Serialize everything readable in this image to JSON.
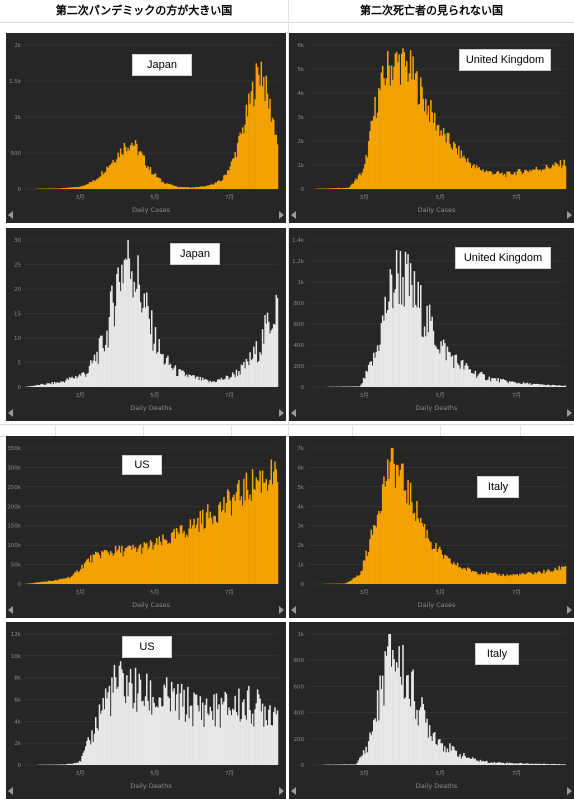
{
  "headers": {
    "left": "第二次パンデミックの方が大きい国",
    "right": "第二次死亡者の見られない国"
  },
  "colors": {
    "panel_bg": "#262626",
    "cases_fill": "#f5a300",
    "deaths_fill": "#e8e8e8",
    "axis_text": "#8a8a8a",
    "gridline": "#3a3a3a"
  },
  "panels": [
    {
      "country": "Japan",
      "metric": "Daily Cases",
      "yticks": [
        "0",
        "500",
        "1k",
        "1.5k",
        "2k"
      ],
      "xticks": [
        "3月",
        "5月",
        "7月"
      ]
    },
    {
      "country": "United Kingdom",
      "metric": "Daily Cases",
      "yticks": [
        "0",
        "1k",
        "2k",
        "3k",
        "4k",
        "5k",
        "6k"
      ],
      "xticks": [
        "3月",
        "5月",
        "7月"
      ]
    },
    {
      "country": "Japan",
      "metric": "Daily Deaths",
      "yticks": [
        "0",
        "5",
        "10",
        "15",
        "20",
        "25",
        "30"
      ],
      "xticks": [
        "3月",
        "5月",
        "7月"
      ]
    },
    {
      "country": "United Kingdom",
      "metric": "Daily Deaths",
      "yticks": [
        "0",
        "200",
        "400",
        "600",
        "800",
        "1k",
        "1.2k",
        "1.4k"
      ],
      "xticks": [
        "3月",
        "5月",
        "7月"
      ]
    },
    {
      "country": "US",
      "metric": "Daily Cases",
      "yticks": [
        "0",
        "50k",
        "100k",
        "150k",
        "200k",
        "250k",
        "300k",
        "350k"
      ],
      "xticks": [
        "3月",
        "5月",
        "7月"
      ]
    },
    {
      "country": "Italy",
      "metric": "Daily Cases",
      "yticks": [
        "0",
        "1k",
        "2k",
        "3k",
        "4k",
        "5k",
        "6k",
        "7k"
      ],
      "xticks": [
        "3月",
        "5月",
        "7月"
      ]
    },
    {
      "country": "US",
      "metric": "Daily Deaths",
      "yticks": [
        "0",
        "2k",
        "4k",
        "6k",
        "8k",
        "10k",
        "12k"
      ],
      "xticks": [
        "3月",
        "5月",
        "7月"
      ]
    },
    {
      "country": "Italy",
      "metric": "Daily Deaths",
      "yticks": [
        "0",
        "200",
        "400",
        "600",
        "800",
        "1k"
      ],
      "xticks": [
        "3月",
        "5月",
        "7月"
      ]
    }
  ],
  "chart_data": [
    {
      "type": "bar",
      "title": "Japan",
      "xlabel": "Daily Cases",
      "ylabel": "",
      "ylim": [
        0,
        2000
      ],
      "x_range_months": [
        1.5,
        8.3
      ],
      "grid": true,
      "shape": [
        [
          1.5,
          0
        ],
        [
          2.5,
          10
        ],
        [
          3.0,
          30
        ],
        [
          3.4,
          120
        ],
        [
          3.8,
          350
        ],
        [
          4.2,
          600
        ],
        [
          4.4,
          650
        ],
        [
          4.6,
          500
        ],
        [
          4.9,
          250
        ],
        [
          5.2,
          100
        ],
        [
          5.6,
          30
        ],
        [
          6.0,
          20
        ],
        [
          6.4,
          40
        ],
        [
          6.8,
          120
        ],
        [
          7.1,
          400
        ],
        [
          7.4,
          900
        ],
        [
          7.7,
          1500
        ],
        [
          7.85,
          1700
        ],
        [
          8.0,
          1300
        ],
        [
          8.2,
          900
        ],
        [
          8.3,
          600
        ]
      ]
    },
    {
      "type": "bar",
      "title": "United Kingdom",
      "xlabel": "Daily Cases",
      "ylabel": "",
      "ylim": [
        0,
        6000
      ],
      "x_range_months": [
        1.5,
        8.3
      ],
      "grid": true,
      "shape": [
        [
          1.5,
          0
        ],
        [
          2.6,
          50
        ],
        [
          3.0,
          800
        ],
        [
          3.3,
          3500
        ],
        [
          3.6,
          5000
        ],
        [
          3.9,
          5300
        ],
        [
          4.2,
          5000
        ],
        [
          4.5,
          4000
        ],
        [
          4.8,
          3000
        ],
        [
          5.1,
          2200
        ],
        [
          5.5,
          1500
        ],
        [
          5.9,
          900
        ],
        [
          6.3,
          700
        ],
        [
          6.7,
          600
        ],
        [
          7.0,
          700
        ],
        [
          7.4,
          800
        ],
        [
          7.8,
          900
        ],
        [
          8.1,
          1000
        ],
        [
          8.3,
          1100
        ]
      ]
    },
    {
      "type": "bar",
      "title": "Japan",
      "xlabel": "Daily Deaths",
      "ylabel": "",
      "ylim": [
        0,
        30
      ],
      "x_range_months": [
        1.5,
        8.3
      ],
      "grid": true,
      "shape": [
        [
          1.5,
          0
        ],
        [
          2.5,
          1
        ],
        [
          3.2,
          3
        ],
        [
          3.7,
          10
        ],
        [
          4.0,
          22
        ],
        [
          4.3,
          28
        ],
        [
          4.6,
          20
        ],
        [
          4.9,
          12
        ],
        [
          5.2,
          6
        ],
        [
          5.6,
          3
        ],
        [
          6.0,
          2
        ],
        [
          6.5,
          1
        ],
        [
          7.0,
          2
        ],
        [
          7.4,
          4
        ],
        [
          7.8,
          8
        ],
        [
          8.1,
          14
        ],
        [
          8.3,
          18
        ]
      ]
    },
    {
      "type": "bar",
      "title": "United Kingdom",
      "xlabel": "Daily Deaths",
      "ylabel": "",
      "ylim": [
        0,
        1400
      ],
      "x_range_months": [
        1.5,
        8.3
      ],
      "grid": true,
      "shape": [
        [
          1.5,
          0
        ],
        [
          2.9,
          5
        ],
        [
          3.3,
          300
        ],
        [
          3.6,
          800
        ],
        [
          3.9,
          1100
        ],
        [
          4.1,
          1000
        ],
        [
          4.4,
          800
        ],
        [
          4.7,
          600
        ],
        [
          5.0,
          400
        ],
        [
          5.4,
          250
        ],
        [
          5.8,
          150
        ],
        [
          6.2,
          90
        ],
        [
          6.6,
          60
        ],
        [
          7.0,
          40
        ],
        [
          7.5,
          25
        ],
        [
          8.0,
          15
        ],
        [
          8.3,
          10
        ]
      ]
    },
    {
      "type": "bar",
      "title": "US",
      "xlabel": "Daily Cases",
      "ylabel": "",
      "ylim": [
        0,
        350000
      ],
      "x_range_months": [
        1.5,
        8.3
      ],
      "grid": true,
      "shape": [
        [
          1.5,
          0
        ],
        [
          2.4,
          10000
        ],
        [
          2.8,
          20000
        ],
        [
          3.2,
          60000
        ],
        [
          3.6,
          80000
        ],
        [
          4.0,
          85000
        ],
        [
          4.5,
          90000
        ],
        [
          5.0,
          100000
        ],
        [
          5.5,
          120000
        ],
        [
          6.0,
          150000
        ],
        [
          6.5,
          180000
        ],
        [
          7.0,
          210000
        ],
        [
          7.4,
          240000
        ],
        [
          7.8,
          270000
        ],
        [
          8.1,
          280000
        ],
        [
          8.3,
          260000
        ]
      ]
    },
    {
      "type": "bar",
      "title": "Italy",
      "xlabel": "Daily Cases",
      "ylabel": "",
      "ylim": [
        0,
        7000
      ],
      "x_range_months": [
        1.5,
        8.3
      ],
      "grid": true,
      "shape": [
        [
          1.5,
          0
        ],
        [
          2.5,
          20
        ],
        [
          2.9,
          500
        ],
        [
          3.2,
          2500
        ],
        [
          3.5,
          5000
        ],
        [
          3.7,
          6300
        ],
        [
          3.9,
          5800
        ],
        [
          4.2,
          4500
        ],
        [
          4.5,
          3200
        ],
        [
          4.8,
          2000
        ],
        [
          5.2,
          1200
        ],
        [
          5.6,
          800
        ],
        [
          6.0,
          600
        ],
        [
          6.4,
          500
        ],
        [
          6.8,
          450
        ],
        [
          7.2,
          500
        ],
        [
          7.6,
          600
        ],
        [
          8.0,
          700
        ],
        [
          8.2,
          900
        ],
        [
          8.3,
          1000
        ]
      ]
    },
    {
      "type": "bar",
      "title": "US",
      "xlabel": "Daily Deaths",
      "ylabel": "",
      "ylim": [
        0,
        12000
      ],
      "x_range_months": [
        1.5,
        8.3
      ],
      "grid": true,
      "shape": [
        [
          1.5,
          0
        ],
        [
          2.6,
          50
        ],
        [
          3.0,
          300
        ],
        [
          3.3,
          2500
        ],
        [
          3.6,
          5500
        ],
        [
          3.9,
          7000
        ],
        [
          4.2,
          7500
        ],
        [
          4.6,
          6500
        ],
        [
          5.0,
          6000
        ],
        [
          5.4,
          6000
        ],
        [
          5.8,
          5500
        ],
        [
          6.2,
          5200
        ],
        [
          6.6,
          5000
        ],
        [
          7.0,
          5300
        ],
        [
          7.4,
          5500
        ],
        [
          7.8,
          5200
        ],
        [
          8.3,
          5000
        ]
      ]
    },
    {
      "type": "bar",
      "title": "Italy",
      "xlabel": "Daily Deaths",
      "ylabel": "",
      "ylim": [
        0,
        1000
      ],
      "x_range_months": [
        1.5,
        8.3
      ],
      "grid": true,
      "shape": [
        [
          1.5,
          0
        ],
        [
          2.8,
          5
        ],
        [
          3.1,
          150
        ],
        [
          3.4,
          500
        ],
        [
          3.6,
          800
        ],
        [
          3.75,
          880
        ],
        [
          3.9,
          780
        ],
        [
          4.2,
          600
        ],
        [
          4.5,
          400
        ],
        [
          4.8,
          250
        ],
        [
          5.1,
          150
        ],
        [
          5.5,
          80
        ],
        [
          5.9,
          40
        ],
        [
          6.3,
          20
        ],
        [
          6.8,
          15
        ],
        [
          7.3,
          10
        ],
        [
          7.8,
          8
        ],
        [
          8.3,
          5
        ]
      ]
    }
  ]
}
